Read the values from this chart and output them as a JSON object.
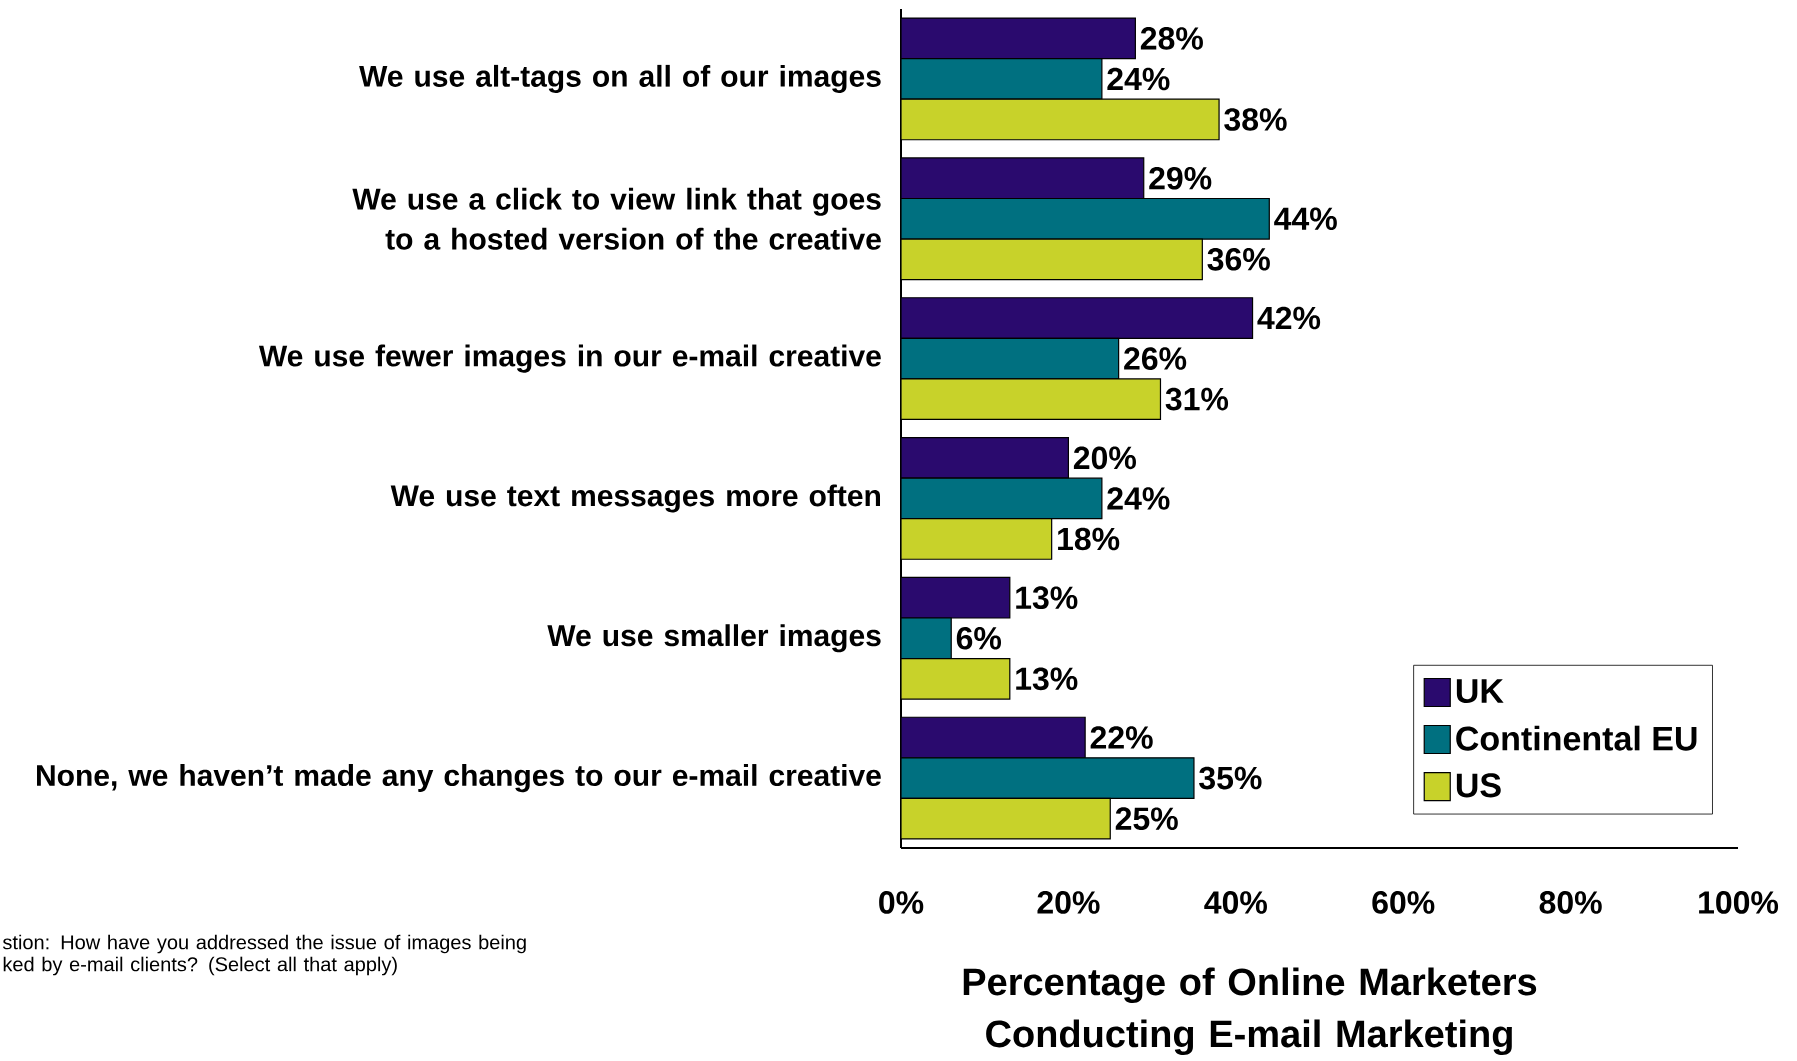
{
  "chart_data": {
    "type": "bar",
    "orientation": "horizontal",
    "categories": [
      "We use alt-tags on all of our images",
      "We use a click to view link that goes to a hosted version of the creative",
      "We use fewer images in our e-mail creative",
      "We use text messages more often",
      "We use smaller images",
      "None, we haven’t made any changes to our e-mail creative"
    ],
    "series": [
      {
        "name": "UK",
        "color": "#2a0a6e",
        "values": [
          28,
          29,
          42,
          20,
          13,
          22
        ],
        "value_labels": [
          "28%",
          "29%",
          "42%",
          "20%",
          "13%",
          "22%"
        ]
      },
      {
        "name": "Continental EU",
        "color": "#007080",
        "values": [
          24,
          44,
          26,
          24,
          6,
          35
        ],
        "value_labels": [
          "24%",
          "44%",
          "26%",
          "24%",
          "6%",
          "35%"
        ]
      },
      {
        "name": "US",
        "color": "#c8d22a",
        "values": [
          38,
          36,
          31,
          18,
          13,
          25
        ],
        "value_labels": [
          "38%",
          "36%",
          "31%",
          "18%",
          "13%",
          "25%"
        ]
      }
    ],
    "xlim": [
      0,
      100
    ],
    "xticks": [
      {
        "value": 0,
        "label": "0%"
      },
      {
        "value": 20,
        "label": "20%"
      },
      {
        "value": 40,
        "label": "40%"
      },
      {
        "value": 60,
        "label": "60%"
      },
      {
        "value": 80,
        "label": "80%"
      },
      {
        "value": 100,
        "label": "100%"
      }
    ],
    "xlabel": "Percentage of Online Marketers Conducting E-mail Marketing",
    "legend": "bottom right",
    "annotations": [
      "stion: How have you addressed the issue of images being ked by e-mail clients? (Select all that apply)"
    ]
  }
}
